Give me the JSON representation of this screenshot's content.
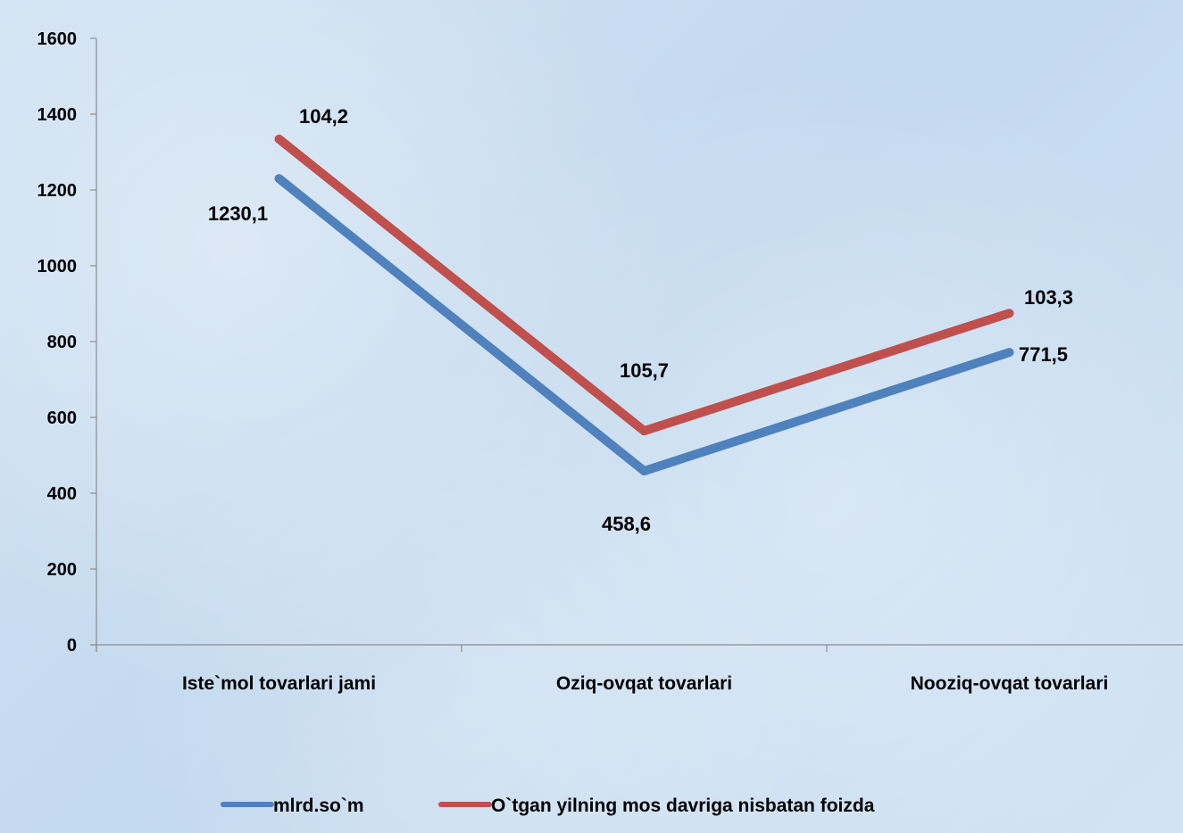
{
  "chart_data": {
    "type": "line",
    "title": "",
    "xlabel": "",
    "ylabel": "",
    "categories": [
      "Iste`mol tovarlari jami",
      "Oziq-ovqat tovarlari",
      "Nooziq-ovqat tovarlari"
    ],
    "ylim": [
      0,
      1600
    ],
    "yticks": [
      0,
      200,
      400,
      600,
      800,
      1000,
      1200,
      1400,
      1600
    ],
    "grid": false,
    "legend_position": "bottom",
    "series": [
      {
        "name": "mlrd.so`m",
        "color": "#4f81bd",
        "values": [
          1230.1,
          458.6,
          771.5
        ],
        "labels": [
          "1230,1",
          "458,6",
          "771,5"
        ]
      },
      {
        "name": "O`tgan yilning mos davriga nisbatan foizda",
        "color": "#c0504d",
        "values": [
          1334.3,
          564.3,
          874.8
        ],
        "labels": [
          "104,2",
          "105,7",
          "103,3"
        ]
      }
    ]
  }
}
